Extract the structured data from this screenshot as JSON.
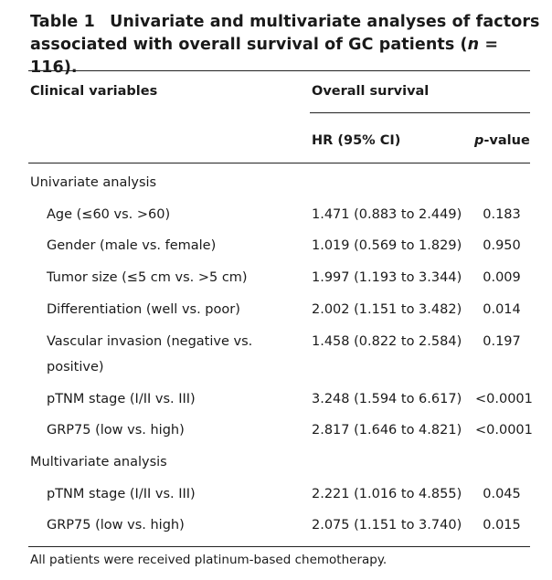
{
  "caption": {
    "label": "Table 1",
    "title_pre": "Univariate and multivariate analyses of factors associated with overall survival of GC patients (",
    "n_symbol": "n",
    "title_post": " = 116)."
  },
  "headers": {
    "clinical_variables": "Clinical variables",
    "overall_survival": "Overall survival",
    "hr": "HR (95% CI)",
    "p_italic": "p",
    "p_rest": "-value"
  },
  "rows": [
    {
      "label": "Univariate analysis",
      "hr": "",
      "p": ""
    },
    {
      "label": "Age (≤60 vs. >60)",
      "hr": "1.471 (0.883 to 2.449)",
      "p": "0.183"
    },
    {
      "label": "Gender (male vs. female)",
      "hr": "1.019 (0.569 to 1.829)",
      "p": "0.950"
    },
    {
      "label": "Tumor size (≤5 cm vs. >5 cm)",
      "hr": "1.997 (1.193 to 3.344)",
      "p": "0.009"
    },
    {
      "label": "Differentiation (well vs. poor)",
      "hr": "2.002 (1.151 to 3.482)",
      "p": "0.014"
    },
    {
      "label": "Vascular invasion (negative vs.",
      "label_cont": "positive)",
      "hr": "1.458 (0.822 to 2.584)",
      "p": "0.197"
    },
    {
      "label": "pTNM stage (I/II vs. III)",
      "hr": "3.248 (1.594 to 6.617)",
      "p": "<0.0001"
    },
    {
      "label": "GRP75 (low vs. high)",
      "hr": "2.817 (1.646 to 4.821)",
      "p": "<0.0001"
    },
    {
      "label": "Multivariate analysis",
      "hr": "",
      "p": ""
    },
    {
      "label": "pTNM stage (I/II vs. III)",
      "hr": "2.221 (1.016 to 4.855)",
      "p": "0.045"
    },
    {
      "label": "GRP75 (low vs. high)",
      "hr": "2.075 (1.151 to 3.740)",
      "p": "0.015"
    }
  ],
  "footnote": "All patients were received platinum-based chemotherapy."
}
